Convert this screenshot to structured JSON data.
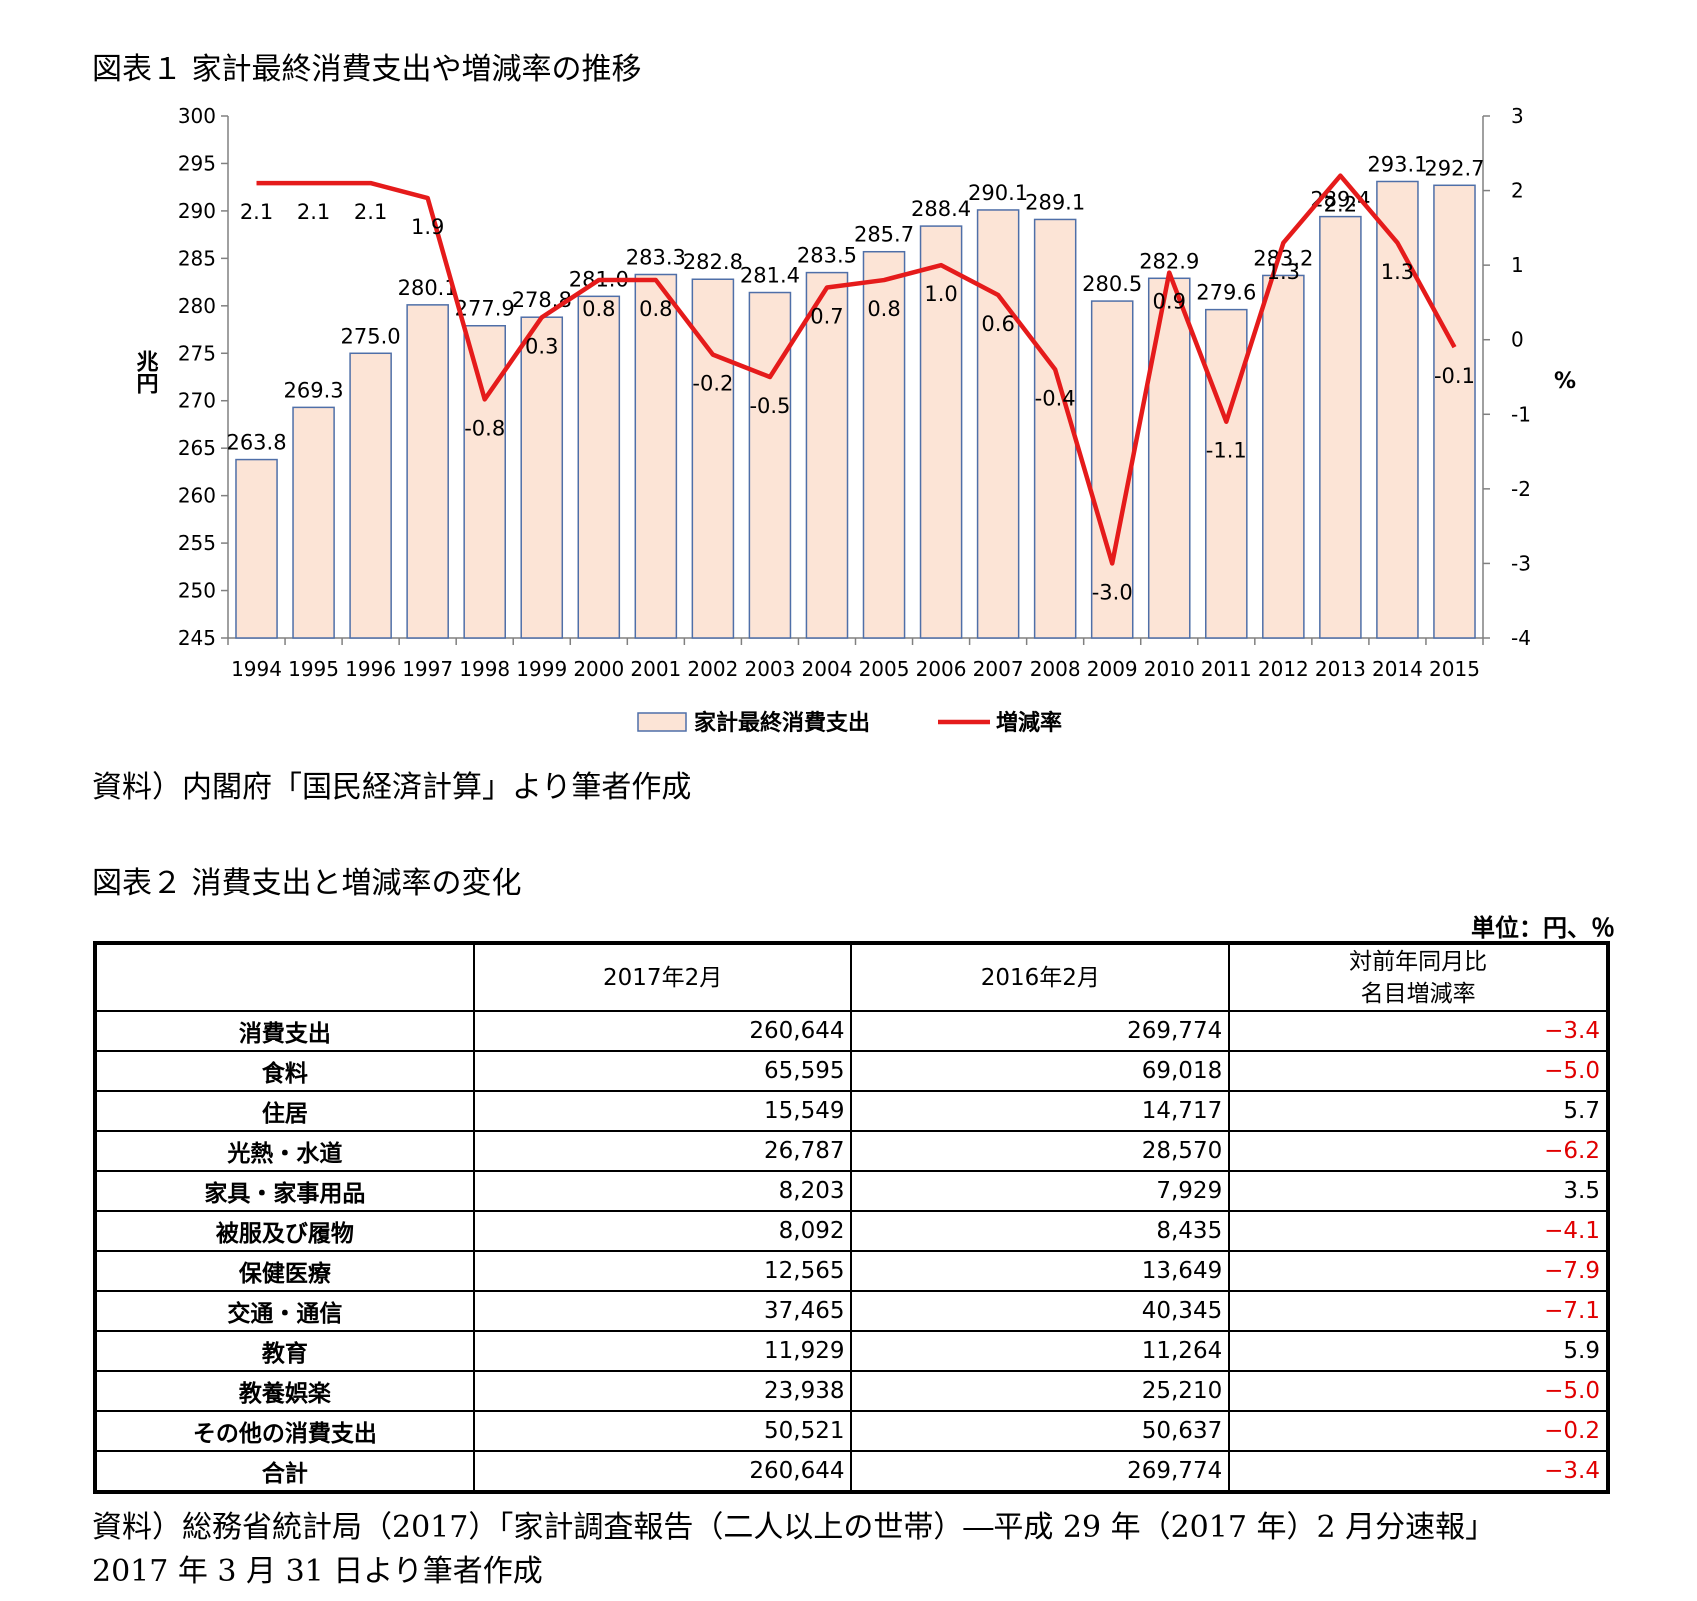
{
  "figure1": {
    "title": "図表１ 家計最終消費支出や増減率の推移",
    "source": "資料）内閣府「国民経済計算」より筆者作成"
  },
  "figure2": {
    "title": "図表２ 消費支出と増減率の変化",
    "unit": "単位：円、％",
    "columns": [
      "",
      "2017年2月",
      "2016年2月",
      "対前年同月比\n名目増減率"
    ],
    "rows": [
      {
        "label": "消費支出",
        "v2017": "260,644",
        "v2016": "269,774",
        "change": "−3.4",
        "negative": true
      },
      {
        "label": "食料",
        "v2017": "65,595",
        "v2016": "69,018",
        "change": "−5.0",
        "negative": true
      },
      {
        "label": "住居",
        "v2017": "15,549",
        "v2016": "14,717",
        "change": "5.7",
        "negative": false
      },
      {
        "label": "光熱・水道",
        "v2017": "26,787",
        "v2016": "28,570",
        "change": "−6.2",
        "negative": true
      },
      {
        "label": "家具・家事用品",
        "v2017": "8,203",
        "v2016": "7,929",
        "change": "3.5",
        "negative": false
      },
      {
        "label": "被服及び履物",
        "v2017": "8,092",
        "v2016": "8,435",
        "change": "−4.1",
        "negative": true
      },
      {
        "label": "保健医療",
        "v2017": "12,565",
        "v2016": "13,649",
        "change": "−7.9",
        "negative": true
      },
      {
        "label": "交通・通信",
        "v2017": "37,465",
        "v2016": "40,345",
        "change": "−7.1",
        "negative": true
      },
      {
        "label": "教育",
        "v2017": "11,929",
        "v2016": "11,264",
        "change": "5.9",
        "negative": false
      },
      {
        "label": "教養娯楽",
        "v2017": "23,938",
        "v2016": "25,210",
        "change": "−5.0",
        "negative": true
      },
      {
        "label": "その他の消費支出",
        "v2017": "50,521",
        "v2016": "50,637",
        "change": "−0.2",
        "negative": true
      },
      {
        "label": "合計",
        "v2017": "260,644",
        "v2016": "269,774",
        "change": "−3.4",
        "negative": true
      }
    ],
    "source": "資料）総務省統計局（2017）「家計調査報告（二人以上の世帯）―平成 29 年（2017 年）2 月分速報」\n2017 年 3 月 31 日より筆者作成"
  },
  "chart_data": {
    "type": "bar+line",
    "title": "図表１ 家計最終消費支出や増減率の推移",
    "categories": [
      "1994",
      "1995",
      "1996",
      "1997",
      "1998",
      "1999",
      "2000",
      "2001",
      "2002",
      "2003",
      "2004",
      "2005",
      "2006",
      "2007",
      "2008",
      "2009",
      "2010",
      "2011",
      "2012",
      "2013",
      "2014",
      "2015"
    ],
    "series": [
      {
        "name": "家計最終消費支出",
        "kind": "bar",
        "axis": "left",
        "values": [
          263.8,
          269.3,
          275.0,
          280.1,
          277.9,
          278.8,
          281.0,
          283.3,
          282.8,
          281.4,
          283.5,
          285.7,
          288.4,
          290.1,
          289.1,
          280.5,
          282.9,
          279.6,
          283.2,
          289.4,
          293.1,
          292.7
        ],
        "labels": [
          "263.8",
          "269.3",
          "275.0",
          "280.1",
          "277.9",
          "278.8",
          "281.0",
          "283.3",
          "282.8",
          "281.4",
          "283.5",
          "285.7",
          "288.4",
          "290.1",
          "289.1",
          "280.5",
          "282.9",
          "279.6",
          "283.2",
          "289.4",
          "293.1",
          "292.7"
        ]
      },
      {
        "name": "増減率",
        "kind": "line",
        "axis": "right",
        "values": [
          2.1,
          2.1,
          2.1,
          1.9,
          -0.8,
          0.3,
          0.8,
          0.8,
          -0.2,
          -0.5,
          0.7,
          0.8,
          1.0,
          0.6,
          -0.4,
          -3.0,
          0.9,
          -1.1,
          1.3,
          2.2,
          1.3,
          -0.1
        ],
        "labels": [
          "2.1",
          "2.1",
          "2.1",
          "1.9",
          "-0.8",
          "0.3",
          "0.8",
          "0.8",
          "-0.2",
          "-0.5",
          "0.7",
          "0.8",
          "1.0",
          "0.6",
          "-0.4",
          "-3.0",
          "0.9",
          "-1.1",
          "1.3",
          "2.2",
          "1.3",
          "-0.1"
        ]
      }
    ],
    "ylabel_left": "兆円",
    "ylabel_right": "%",
    "ylim_left": [
      245,
      300
    ],
    "yticks_left": [
      "245",
      "250",
      "255",
      "260",
      "265",
      "270",
      "275",
      "280",
      "285",
      "290",
      "295",
      "300"
    ],
    "ylim_right": [
      -4,
      3
    ],
    "yticks_right": [
      "-4",
      "-3",
      "-2",
      "-1",
      "0",
      "1",
      "2",
      "3"
    ],
    "legend_position": "bottom",
    "colors": {
      "bar_fill": "#fce4d6",
      "bar_stroke": "#4f6fa8",
      "line": "#e51b1b",
      "axis": "#808080"
    }
  }
}
